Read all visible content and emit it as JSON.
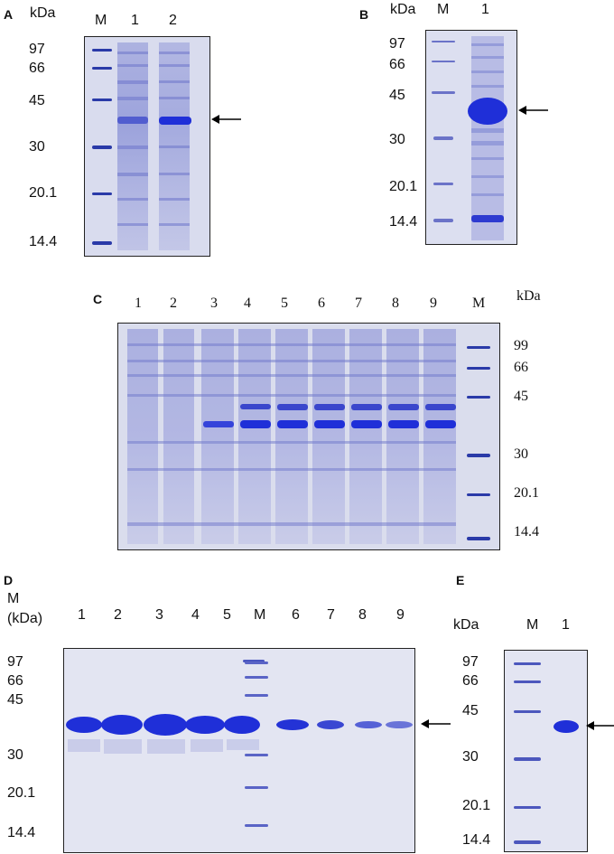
{
  "colors": {
    "gel_background": "#d9dcee",
    "band_dark": "#1f2fd8",
    "band_medium": "#5561d6",
    "band_light": "#9aa0dd",
    "marker_band": "#2a3aa8"
  },
  "panels": {
    "A": {
      "letter": "A",
      "unit": "kDa",
      "lanes": [
        "M",
        "1",
        "2"
      ],
      "markers": [
        "97",
        "66",
        "45",
        "30",
        "20.1",
        "14.4"
      ]
    },
    "B": {
      "letter": "B",
      "unit": "kDa",
      "lanes": [
        "M",
        "1"
      ],
      "markers": [
        "97",
        "66",
        "45",
        "30",
        "20.1",
        "14.4"
      ]
    },
    "C": {
      "letter": "C",
      "unit": "kDa",
      "lanes": [
        "1",
        "2",
        "3",
        "4",
        "5",
        "6",
        "7",
        "8",
        "9",
        "M"
      ],
      "markers": [
        "99",
        "66",
        "45",
        "30",
        "20.1",
        "14.4"
      ]
    },
    "D": {
      "letter": "D",
      "unit_line1": "M",
      "unit_line2": "(kDa)",
      "lanes": [
        "1",
        "2",
        "3",
        "4",
        "5",
        "M",
        "6",
        "7",
        "8",
        "9"
      ],
      "markers": [
        "97",
        "66",
        "45",
        "30",
        "20.1",
        "14.4"
      ]
    },
    "E": {
      "letter": "E",
      "unit": "kDa",
      "lanes": [
        "M",
        "1"
      ],
      "markers": [
        "97",
        "66",
        "45",
        "30",
        "20.1",
        "14.4"
      ]
    }
  }
}
